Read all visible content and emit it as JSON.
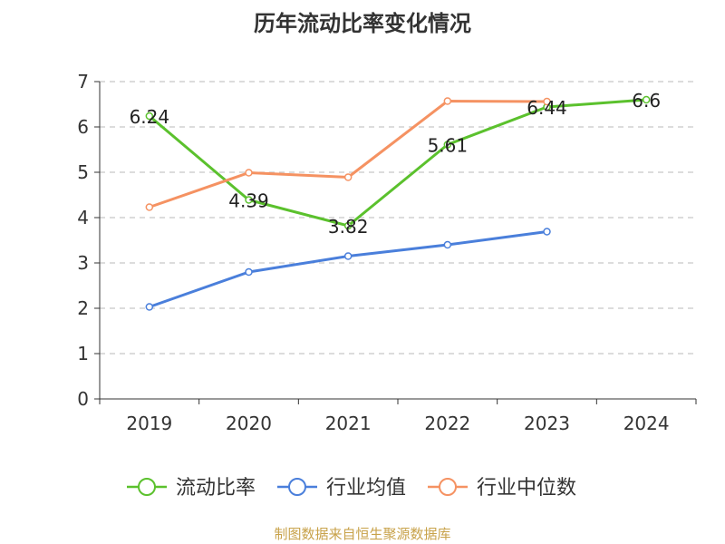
{
  "chart_data": {
    "type": "line",
    "title": "历年流动比率变化情况",
    "categories": [
      "2019",
      "2020",
      "2021",
      "2022",
      "2023",
      "2024"
    ],
    "ylim": [
      0,
      7
    ],
    "yticks": [
      0,
      1,
      2,
      3,
      4,
      5,
      6,
      7
    ],
    "grid": true,
    "legend_position": "bottom",
    "series": [
      {
        "name": "流动比率",
        "color": "#5bc12d",
        "values": [
          6.24,
          4.39,
          3.82,
          5.61,
          6.44,
          6.6
        ],
        "labels": [
          "6.24",
          "4.39",
          "3.82",
          "5.61",
          "6.44",
          "6.6"
        ]
      },
      {
        "name": "行业均值",
        "color": "#4a7fdb",
        "values": [
          2.03,
          2.8,
          3.15,
          3.4,
          3.69,
          null
        ]
      },
      {
        "name": "行业中位数",
        "color": "#f59262",
        "values": [
          4.23,
          4.99,
          4.89,
          6.57,
          6.56,
          null
        ]
      }
    ]
  },
  "source_note": "制图数据来自恒生聚源数据库"
}
